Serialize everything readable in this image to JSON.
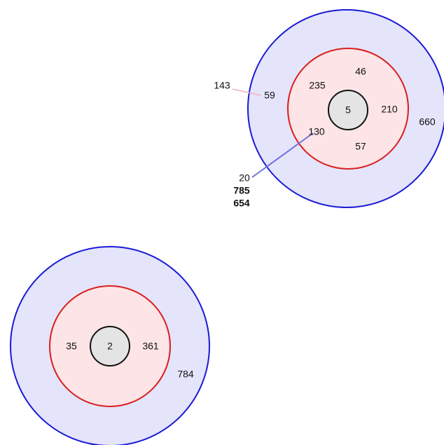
{
  "diagrams": [
    {
      "labels": [
        46,
        235,
        59,
        5,
        210,
        660,
        130,
        57,
        143,
        20,
        785,
        654
      ]
    },
    {
      "labels": [
        35,
        2,
        361,
        784
      ]
    }
  ]
}
